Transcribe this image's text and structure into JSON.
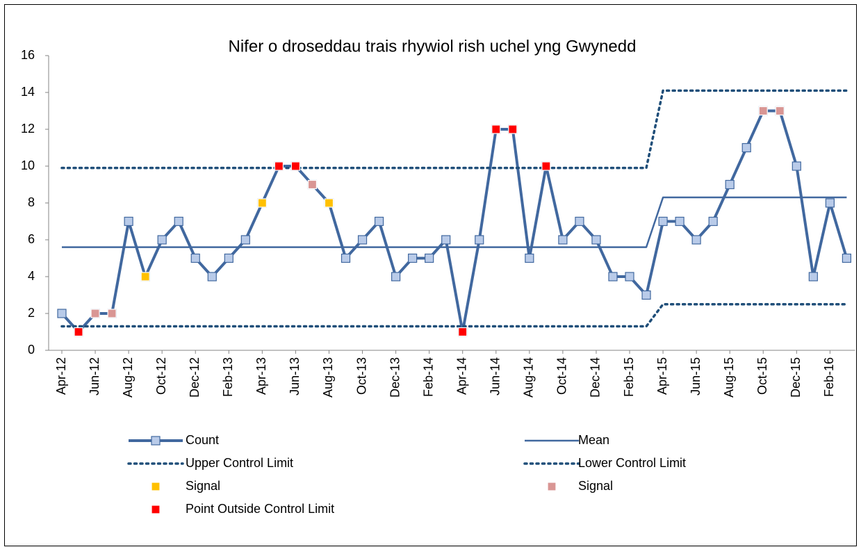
{
  "chart_data": {
    "type": "line",
    "title": "Nifer o droseddau trais rhywiol rish uchel yng Gwynedd",
    "categories": [
      "Apr-12",
      null,
      "Jun-12",
      null,
      "Aug-12",
      null,
      "Oct-12",
      null,
      "Dec-12",
      null,
      "Feb-13",
      null,
      "Apr-13",
      null,
      "Jun-13",
      null,
      "Aug-13",
      null,
      "Oct-13",
      null,
      "Dec-13",
      null,
      "Feb-14",
      null,
      "Apr-14",
      null,
      "Jun-14",
      null,
      "Aug-14",
      null,
      "Oct-14",
      null,
      "Dec-14",
      null,
      "Feb-15",
      null,
      "Apr-15",
      null,
      "Jun-15",
      null,
      "Aug-15",
      null,
      "Oct-15",
      null,
      "Dec-15",
      null,
      "Feb-16",
      null
    ],
    "ylim": [
      0,
      16
    ],
    "yticks": [
      0,
      2,
      4,
      6,
      8,
      10,
      12,
      14,
      16
    ],
    "grid": false,
    "legend": "bottom",
    "series": [
      {
        "name": "Count",
        "color": "#41689f",
        "marker_color": "#b9cbe9",
        "line": "solid",
        "marker": true,
        "values": [
          2,
          1,
          2,
          2,
          7,
          4,
          6,
          7,
          5,
          4,
          5,
          6,
          8,
          10,
          10,
          9,
          8,
          5,
          6,
          7,
          4,
          5,
          5,
          6,
          1,
          6,
          12,
          12,
          5,
          10,
          6,
          7,
          6,
          4,
          4,
          3,
          7,
          7,
          6,
          7,
          9,
          11,
          13,
          13,
          10,
          4,
          8,
          5
        ]
      },
      {
        "name": "Mean",
        "color": "#41689f",
        "line": "solid",
        "marker": false,
        "values": [
          5.6,
          5.6,
          5.6,
          5.6,
          5.6,
          5.6,
          5.6,
          5.6,
          5.6,
          5.6,
          5.6,
          5.6,
          5.6,
          5.6,
          5.6,
          5.6,
          5.6,
          5.6,
          5.6,
          5.6,
          5.6,
          5.6,
          5.6,
          5.6,
          5.6,
          5.6,
          5.6,
          5.6,
          5.6,
          5.6,
          5.6,
          5.6,
          5.6,
          5.6,
          5.6,
          5.6,
          8.3,
          8.3,
          8.3,
          8.3,
          8.3,
          8.3,
          8.3,
          8.3,
          8.3,
          8.3,
          8.3,
          8.3
        ]
      },
      {
        "name": "Upper Control Limit",
        "color": "#1f4e79",
        "line": "dotted",
        "marker": false,
        "values": [
          9.9,
          9.9,
          9.9,
          9.9,
          9.9,
          9.9,
          9.9,
          9.9,
          9.9,
          9.9,
          9.9,
          9.9,
          9.9,
          9.9,
          9.9,
          9.9,
          9.9,
          9.9,
          9.9,
          9.9,
          9.9,
          9.9,
          9.9,
          9.9,
          9.9,
          9.9,
          9.9,
          9.9,
          9.9,
          9.9,
          9.9,
          9.9,
          9.9,
          9.9,
          9.9,
          9.9,
          14.1,
          14.1,
          14.1,
          14.1,
          14.1,
          14.1,
          14.1,
          14.1,
          14.1,
          14.1,
          14.1,
          14.1
        ]
      },
      {
        "name": "Lower Control Limit",
        "color": "#1f4e79",
        "line": "dotted",
        "marker": false,
        "values": [
          1.3,
          1.3,
          1.3,
          1.3,
          1.3,
          1.3,
          1.3,
          1.3,
          1.3,
          1.3,
          1.3,
          1.3,
          1.3,
          1.3,
          1.3,
          1.3,
          1.3,
          1.3,
          1.3,
          1.3,
          1.3,
          1.3,
          1.3,
          1.3,
          1.3,
          1.3,
          1.3,
          1.3,
          1.3,
          1.3,
          1.3,
          1.3,
          1.3,
          1.3,
          1.3,
          1.3,
          2.5,
          2.5,
          2.5,
          2.5,
          2.5,
          2.5,
          2.5,
          2.5,
          2.5,
          2.5,
          2.5,
          2.5
        ]
      },
      {
        "name": "Signal",
        "color": "#ffc000",
        "line": "none",
        "marker": true,
        "values": [
          null,
          null,
          null,
          null,
          null,
          4,
          null,
          null,
          null,
          null,
          null,
          null,
          8,
          null,
          null,
          null,
          8,
          null,
          null,
          null,
          null,
          null,
          null,
          null,
          null,
          null,
          null,
          null,
          null,
          null,
          null,
          null,
          null,
          null,
          null,
          null,
          null,
          null,
          null,
          null,
          null,
          null,
          null,
          null,
          null,
          null,
          null,
          null
        ]
      },
      {
        "name": "Signal",
        "color": "#d99694",
        "line": "none",
        "marker": true,
        "values": [
          null,
          null,
          2,
          2,
          null,
          null,
          null,
          null,
          null,
          null,
          null,
          null,
          null,
          null,
          null,
          9,
          null,
          null,
          null,
          null,
          null,
          null,
          null,
          null,
          null,
          null,
          null,
          null,
          null,
          null,
          null,
          null,
          null,
          null,
          null,
          null,
          null,
          null,
          null,
          null,
          null,
          null,
          13,
          13,
          null,
          null,
          null,
          null
        ]
      },
      {
        "name": "Point Outside Control Limit",
        "color": "#ff0000",
        "line": "none",
        "marker": true,
        "values": [
          null,
          1,
          null,
          null,
          null,
          null,
          null,
          null,
          null,
          null,
          null,
          null,
          null,
          10,
          10,
          null,
          null,
          null,
          null,
          null,
          null,
          null,
          null,
          null,
          1,
          null,
          12,
          12,
          null,
          10,
          null,
          null,
          null,
          null,
          null,
          null,
          null,
          null,
          null,
          null,
          null,
          null,
          null,
          null,
          null,
          null,
          null,
          null
        ]
      }
    ]
  }
}
